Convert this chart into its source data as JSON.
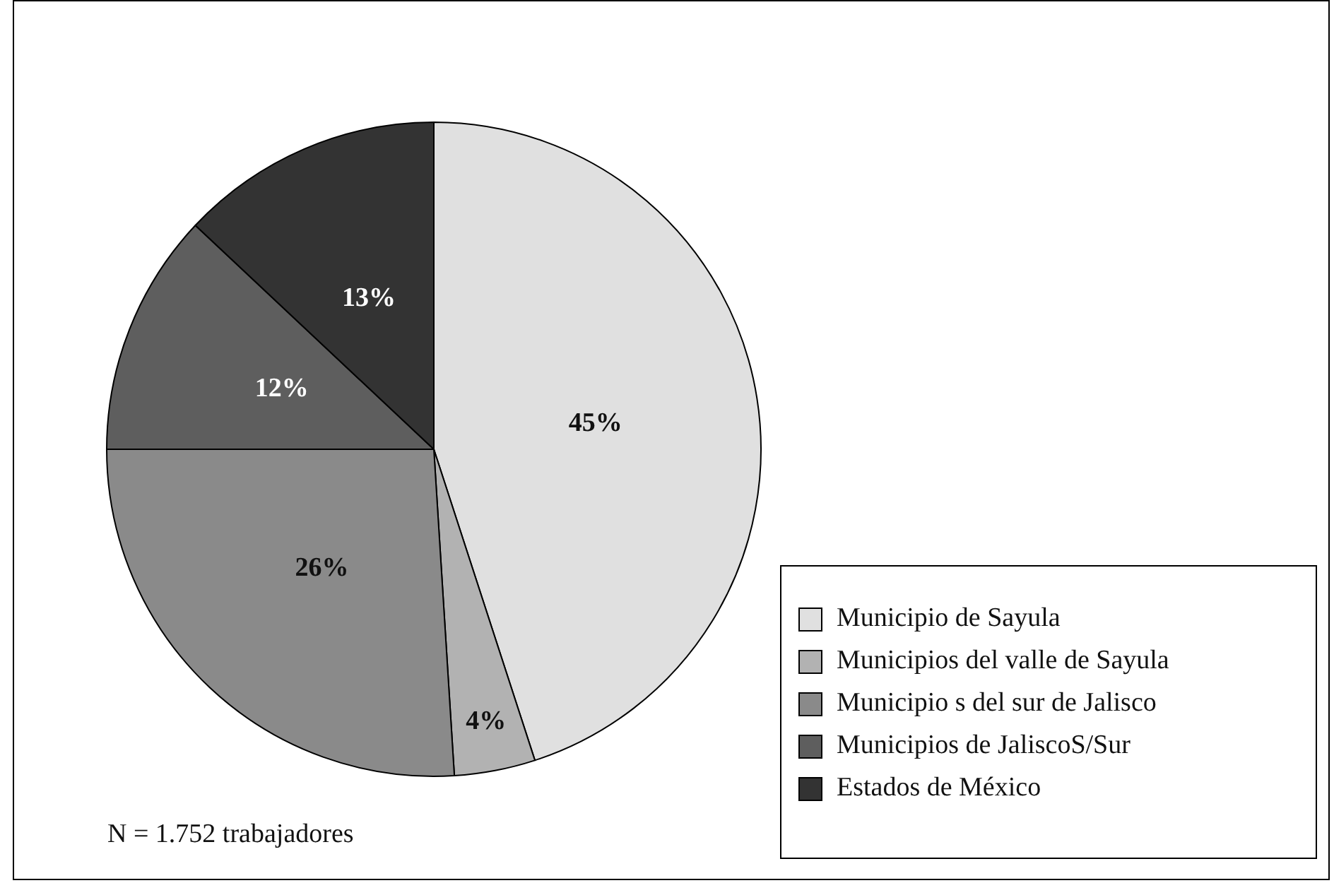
{
  "chart_data": {
    "type": "pie",
    "categories": [
      "Municipio de Sayula",
      "Municipios del valle de Sayula",
      "Municipio s del sur de Jalisco",
      "Municipios de JaliscoS/Sur",
      "Estados de México"
    ],
    "values": [
      45,
      4,
      26,
      12,
      13
    ],
    "colors": [
      "#e0e0e0",
      "#b2b2b2",
      "#8a8a8a",
      "#5e5e5e",
      "#333333"
    ],
    "value_labels": [
      "45%",
      "4%",
      "26%",
      "12%",
      "13%"
    ],
    "legend": "bottom right",
    "annotations": [
      "N = 1.752 trabajadores"
    ]
  }
}
